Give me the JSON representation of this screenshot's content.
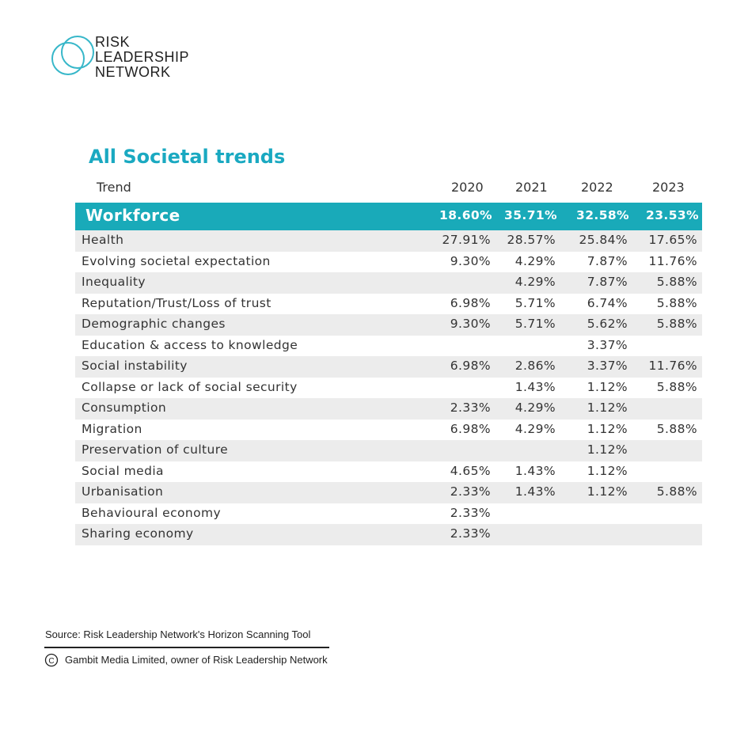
{
  "logo": {
    "lines": [
      "RISK",
      "LEADERSHIP",
      "NETWORK"
    ]
  },
  "title": "All Societal trends",
  "table": {
    "header": [
      "Trend",
      "2020",
      "2021",
      "2022",
      "2023"
    ],
    "rows": [
      [
        "Workforce",
        "18.60%",
        "35.71%",
        "32.58%",
        "23.53%"
      ],
      [
        "Health",
        "27.91%",
        "28.57%",
        "25.84%",
        "17.65%"
      ],
      [
        "Evolving societal expectation",
        "9.30%",
        "4.29%",
        "7.87%",
        "11.76%"
      ],
      [
        "Inequality",
        null,
        "4.29%",
        "7.87%",
        "5.88%"
      ],
      [
        "Reputation/Trust/Loss of trust",
        "6.98%",
        "5.71%",
        "6.74%",
        "5.88%"
      ],
      [
        "Demographic changes",
        "9.30%",
        "5.71%",
        "5.62%",
        "5.88%"
      ],
      [
        "Education & access to knowledge",
        null,
        null,
        "3.37%",
        null
      ],
      [
        "Social instability",
        "6.98%",
        "2.86%",
        "3.37%",
        "11.76%"
      ],
      [
        "Collapse or lack of social security",
        null,
        "1.43%",
        "1.12%",
        "5.88%"
      ],
      [
        "Consumption",
        "2.33%",
        "4.29%",
        "1.12%",
        null
      ],
      [
        "Migration",
        "6.98%",
        "4.29%",
        "1.12%",
        "5.88%"
      ],
      [
        "Preservation of culture",
        null,
        null,
        "1.12%",
        null
      ],
      [
        "Social media",
        "4.65%",
        "1.43%",
        "1.12%",
        null
      ],
      [
        "Urbanisation",
        "2.33%",
        "1.43%",
        "1.12%",
        "5.88%"
      ],
      [
        "Behavioural economy",
        "2.33%",
        null,
        null,
        null
      ],
      [
        "Sharing economy",
        "2.33%",
        null,
        null,
        null
      ]
    ]
  },
  "footer": {
    "source": "Source: Risk Leadership Network's Horizon Scanning Tool",
    "copyright": "Gambit Media Limited, owner of Risk Leadership Network"
  }
}
